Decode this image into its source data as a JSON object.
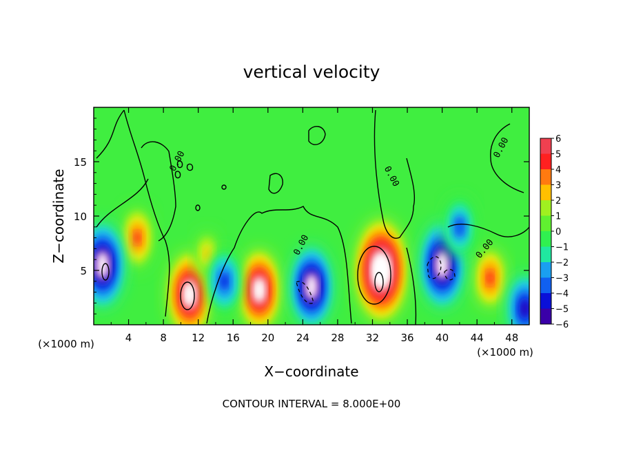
{
  "chart_data": {
    "type": "heatmap",
    "title": "vertical velocity",
    "xlabel": "X−coordinate",
    "ylabel": "Z−coordinate",
    "x_unit": "(×1000 m)",
    "x_unit_right": "(×1000 m)",
    "xlim": [
      0,
      50
    ],
    "ylim": [
      0,
      20
    ],
    "x_ticks": [
      "4",
      "8",
      "12",
      "16",
      "20",
      "24",
      "28",
      "32",
      "36",
      "40",
      "44",
      "48"
    ],
    "y_ticks": [
      "5",
      "10",
      "15"
    ],
    "colorbar": {
      "ticks": [
        "6",
        "5",
        "4",
        "3",
        "2",
        "1",
        "0",
        "−1",
        "−2",
        "−3",
        "−4",
        "−5",
        "−6"
      ],
      "range": [
        -6,
        6
      ],
      "colors": [
        "#8b00b0",
        "#3a00a8",
        "#0a10d8",
        "#1060f0",
        "#1a9ff0",
        "#20d8e0",
        "#20e8a0",
        "#30f050",
        "#60f030",
        "#a0f020",
        "#e8f010",
        "#ffc000",
        "#ff7a10",
        "#ff2020",
        "#f04050",
        "#f08a98",
        "#ffffff"
      ],
      "legend_placement": "right"
    },
    "contour_labels": [
      "0.00",
      "0.00",
      "0.00",
      "0.00",
      "0.00"
    ],
    "footer": "CONTOUR INTERVAL = 8.000E+00",
    "features": [
      {
        "x": 33,
        "z": 5.0,
        "w": 9.0
      },
      {
        "x": 11,
        "z": 2.8,
        "w": 7.0
      },
      {
        "x": 19,
        "z": 3.2,
        "w": 6.5
      },
      {
        "x": 5,
        "z": 8.0,
        "w": 4.5
      },
      {
        "x": 45.5,
        "z": 4.3,
        "w": 4.0
      },
      {
        "x": 13,
        "z": 6.5,
        "w": 2.5
      },
      {
        "x": 1,
        "z": 5.5,
        "w": -7.0
      },
      {
        "x": 15,
        "z": 4.0,
        "w": -4.5
      },
      {
        "x": 25,
        "z": 3.5,
        "w": -6.5
      },
      {
        "x": 40,
        "z": 5.5,
        "w": -7.0
      },
      {
        "x": 42,
        "z": 9.0,
        "w": -4.0
      },
      {
        "x": 49.5,
        "z": 1.5,
        "w": -5.0
      }
    ]
  }
}
